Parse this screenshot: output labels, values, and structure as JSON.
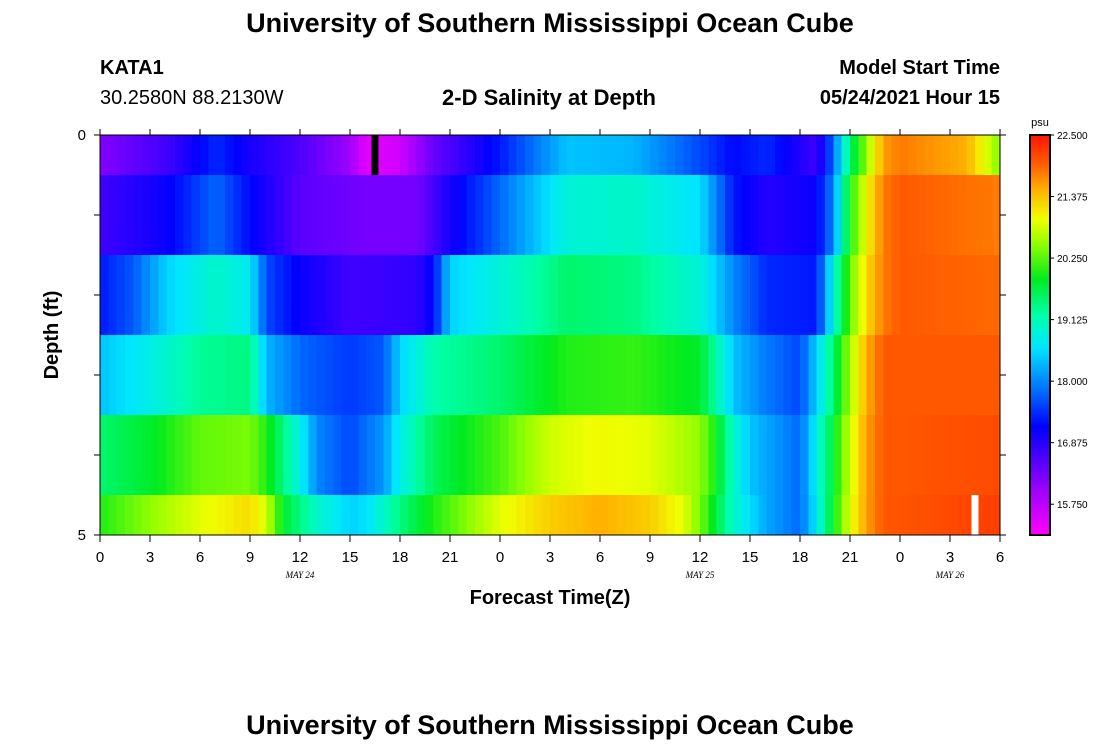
{
  "header": {
    "title": "University of Southern Mississippi Ocean Cube",
    "station": "KATA1",
    "coords": "30.2580N  88.2130W",
    "plot_title": "2-D Salinity at Depth",
    "model_start_label": "Model Start Time",
    "model_start_value": "05/24/2021 Hour 15",
    "footer_title": "University of Southern Mississippi Ocean Cube"
  },
  "chart_data": {
    "type": "heatmap",
    "title": "2-D Salinity at Depth",
    "xlabel": "Forecast Time(Z)",
    "ylabel": "Depth (ft)",
    "x_unit": "hours from 00Z May 24",
    "xlim": [
      0,
      54
    ],
    "ylim": [
      0,
      5
    ],
    "y_inverted": true,
    "x_tick_values": [
      0,
      3,
      6,
      9,
      12,
      15,
      18,
      21,
      24,
      27,
      30,
      33,
      36,
      39,
      42,
      45,
      48,
      51,
      54
    ],
    "x_tick_labels": [
      "0",
      "3",
      "6",
      "9",
      "12",
      "15",
      "18",
      "21",
      "0",
      "3",
      "6",
      "9",
      "12",
      "15",
      "18",
      "21",
      "0",
      "3",
      "6"
    ],
    "y_tick_labels": [
      "0",
      "5"
    ],
    "date_labels": [
      {
        "x": 12,
        "text": "MAY 24"
      },
      {
        "x": 36,
        "text": "MAY 25"
      },
      {
        "x": 51,
        "text": "MAY 26"
      }
    ],
    "colorbar": {
      "unit": "psu",
      "min": 15.1875,
      "max": 22.5,
      "tick_labels": [
        "22.500",
        "21.375",
        "20.250",
        "19.125",
        "18.000",
        "16.875",
        "15.750"
      ]
    },
    "marker_start": {
      "x": 16.5,
      "color": "#000000"
    },
    "marker_now": {
      "x": 52.5,
      "color": "#ffffff"
    },
    "rows": [
      {
        "depth_top": 0.0,
        "depth_bottom": 0.5,
        "knots": [
          [
            0,
            16.2
          ],
          [
            4,
            16.7
          ],
          [
            7,
            17.4
          ],
          [
            9,
            17.0
          ],
          [
            12,
            16.6
          ],
          [
            15,
            16.0
          ],
          [
            16,
            15.4
          ],
          [
            18,
            15.6
          ],
          [
            20,
            16.4
          ],
          [
            24,
            17.3
          ],
          [
            28,
            18.4
          ],
          [
            32,
            18.3
          ],
          [
            36,
            17.6
          ],
          [
            38,
            17.2
          ],
          [
            40,
            17.4
          ],
          [
            43,
            16.7
          ],
          [
            44,
            17.8
          ],
          [
            45,
            19.5
          ],
          [
            46,
            20.5
          ],
          [
            47,
            21.6
          ],
          [
            48,
            21.8
          ],
          [
            52,
            21.5
          ],
          [
            53.5,
            20.7
          ],
          [
            54,
            20.4
          ]
        ]
      },
      {
        "depth_top": 0.5,
        "depth_bottom": 1.5,
        "knots": [
          [
            0,
            16.7
          ],
          [
            4,
            17.1
          ],
          [
            7,
            17.8
          ],
          [
            9,
            17.2
          ],
          [
            12,
            16.5
          ],
          [
            16,
            16.3
          ],
          [
            19,
            16.3
          ],
          [
            21,
            17.0
          ],
          [
            24,
            17.8
          ],
          [
            28,
            18.9
          ],
          [
            32,
            19.0
          ],
          [
            36,
            18.6
          ],
          [
            38,
            17.3
          ],
          [
            40,
            16.9
          ],
          [
            43,
            17.1
          ],
          [
            44,
            18.0
          ],
          [
            45,
            20.0
          ],
          [
            46,
            21.0
          ],
          [
            47,
            21.8
          ],
          [
            48,
            22.0
          ],
          [
            54,
            21.8
          ]
        ]
      },
      {
        "depth_top": 1.5,
        "depth_bottom": 2.5,
        "knots": [
          [
            0,
            17.3
          ],
          [
            2,
            17.7
          ],
          [
            4,
            18.5
          ],
          [
            7,
            19.0
          ],
          [
            9,
            18.7
          ],
          [
            10,
            17.6
          ],
          [
            12,
            17.1
          ],
          [
            15,
            16.7
          ],
          [
            19,
            16.8
          ],
          [
            20,
            17.2
          ],
          [
            21,
            18.5
          ],
          [
            24,
            18.9
          ],
          [
            28,
            19.5
          ],
          [
            32,
            19.4
          ],
          [
            36,
            18.9
          ],
          [
            38,
            18.0
          ],
          [
            40,
            17.4
          ],
          [
            43,
            17.3
          ],
          [
            44,
            18.9
          ],
          [
            45,
            20.3
          ],
          [
            46,
            21.2
          ],
          [
            47,
            21.8
          ],
          [
            48,
            22.0
          ],
          [
            54,
            21.9
          ]
        ]
      },
      {
        "depth_top": 2.5,
        "depth_bottom": 3.5,
        "knots": [
          [
            0,
            18.4
          ],
          [
            3,
            18.8
          ],
          [
            6,
            19.3
          ],
          [
            9,
            19.4
          ],
          [
            10,
            18.3
          ],
          [
            12,
            17.8
          ],
          [
            15,
            17.5
          ],
          [
            17,
            17.7
          ],
          [
            18,
            18.5
          ],
          [
            20,
            19.2
          ],
          [
            24,
            19.5
          ],
          [
            28,
            20.0
          ],
          [
            32,
            20.1
          ],
          [
            36,
            19.8
          ],
          [
            37,
            19.2
          ],
          [
            38,
            18.4
          ],
          [
            40,
            17.9
          ],
          [
            42,
            17.6
          ],
          [
            43,
            18.5
          ],
          [
            44,
            19.5
          ],
          [
            45,
            20.6
          ],
          [
            46,
            21.5
          ],
          [
            47,
            22.0
          ],
          [
            54,
            22.0
          ]
        ]
      },
      {
        "depth_top": 3.5,
        "depth_bottom": 4.5,
        "knots": [
          [
            0,
            19.5
          ],
          [
            3,
            19.8
          ],
          [
            6,
            20.3
          ],
          [
            9,
            20.4
          ],
          [
            10,
            20.0
          ],
          [
            12,
            18.8
          ],
          [
            13,
            18.0
          ],
          [
            15,
            17.6
          ],
          [
            17,
            18.1
          ],
          [
            18,
            18.8
          ],
          [
            20,
            19.6
          ],
          [
            24,
            20.2
          ],
          [
            27,
            20.8
          ],
          [
            30,
            21.0
          ],
          [
            33,
            20.9
          ],
          [
            36,
            20.5
          ],
          [
            37,
            19.9
          ],
          [
            38,
            19.0
          ],
          [
            39,
            18.4
          ],
          [
            41,
            18.0
          ],
          [
            42,
            17.8
          ],
          [
            43,
            18.8
          ],
          [
            44,
            19.8
          ],
          [
            45,
            20.8
          ],
          [
            46,
            21.6
          ],
          [
            47,
            22.0
          ],
          [
            54,
            22.1
          ]
        ]
      },
      {
        "depth_top": 4.5,
        "depth_bottom": 5.0,
        "knots": [
          [
            0,
            20.0
          ],
          [
            3,
            20.5
          ],
          [
            6,
            20.9
          ],
          [
            9,
            21.2
          ],
          [
            10,
            20.8
          ],
          [
            11,
            19.8
          ],
          [
            13,
            19.0
          ],
          [
            15,
            18.5
          ],
          [
            16,
            18.6
          ],
          [
            18,
            19.4
          ],
          [
            20,
            20.0
          ],
          [
            24,
            20.9
          ],
          [
            27,
            21.3
          ],
          [
            30,
            21.5
          ],
          [
            33,
            21.3
          ],
          [
            35,
            20.9
          ],
          [
            36,
            20.4
          ],
          [
            37,
            19.7
          ],
          [
            38,
            19.0
          ],
          [
            40,
            18.2
          ],
          [
            42,
            17.8
          ],
          [
            43,
            18.7
          ],
          [
            44,
            19.9
          ],
          [
            45,
            20.9
          ],
          [
            46,
            21.6
          ],
          [
            47,
            22.0
          ],
          [
            54,
            22.2
          ]
        ]
      }
    ]
  }
}
